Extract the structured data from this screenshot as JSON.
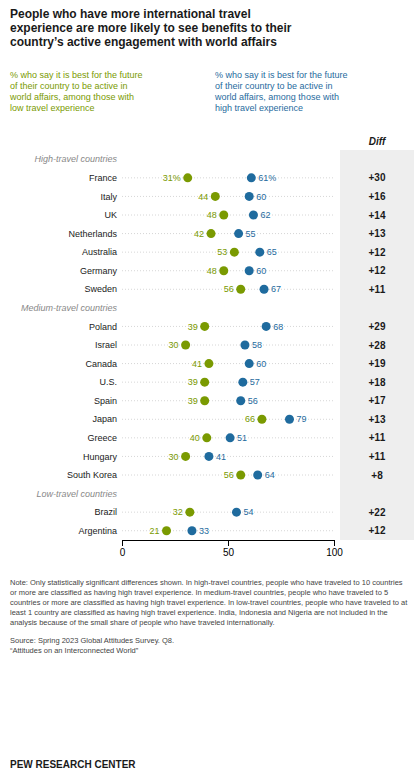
{
  "chart_data": {
    "type": "dot",
    "title": "People who have more international travel\nexperience are more likely to see benefits to their\ncountry’s active engagement with world affairs",
    "categories": [
      "High-travel countries",
      "France",
      "Italy",
      "UK",
      "Netherlands",
      "Australia",
      "Germany",
      "Sweden",
      "Medium-travel countries",
      "Poland",
      "Israel",
      "Canada",
      "U.S.",
      "Spain",
      "Japan",
      "Greece",
      "Hungary",
      "South Korea",
      "Low-travel countries",
      "Brazil",
      "Argentina"
    ],
    "series": [
      {
        "name": "% who say it is best for the future\nof their country to be active in\nworld affairs, among those with\nlow travel experience",
        "color": "#7a9a01",
        "values": [
          null,
          31,
          44,
          48,
          42,
          53,
          48,
          56,
          null,
          39,
          30,
          41,
          39,
          39,
          66,
          40,
          30,
          56,
          null,
          32,
          21
        ],
        "value_labels": [
          null,
          "31%",
          "44",
          "48",
          "42",
          "53",
          "48",
          "56",
          null,
          "39",
          "30",
          "41",
          "39",
          "39",
          "66",
          "40",
          "30",
          "56",
          null,
          "32",
          "21"
        ]
      },
      {
        "name": "% who say it is best for the future\nof their country to be active in\nworld affairs, among those with\nhigh travel experience",
        "color": "#1f6b9e",
        "values": [
          null,
          61,
          60,
          62,
          55,
          65,
          60,
          67,
          null,
          68,
          58,
          60,
          57,
          56,
          79,
          51,
          41,
          64,
          null,
          54,
          33
        ],
        "value_labels": [
          null,
          "61%",
          "60",
          "62",
          "55",
          "65",
          "60",
          "67",
          null,
          "68",
          "58",
          "60",
          "57",
          "56",
          "79",
          "51",
          "41",
          "64",
          null,
          "54",
          "33"
        ]
      }
    ],
    "diff": {
      "name": "Diff",
      "values": [
        null,
        30,
        16,
        14,
        13,
        12,
        12,
        11,
        null,
        29,
        28,
        19,
        18,
        17,
        13,
        11,
        11,
        8,
        null,
        22,
        12
      ],
      "value_labels": [
        null,
        "+30",
        "+16",
        "+14",
        "+13",
        "+12",
        "+12",
        "+11",
        null,
        "+29",
        "+28",
        "+19",
        "+18",
        "+17",
        "+13",
        "+11",
        "+11",
        "+8",
        null,
        "+22",
        "+12"
      ]
    },
    "xlim": [
      0,
      100
    ],
    "xticks": [
      0,
      50,
      100
    ],
    "grid": false,
    "data_labels": true,
    "annotations": [
      "Note: Only statistically significant differences shown. In high-travel countries, people who have traveled to 10 countries or more are classified as having high travel experience. In medium-travel countries, people who have traveled to 5 countries or more are classified as having high travel experience. In low-travel countries, people who have traveled to at least 1 country are classified as having high travel experience. India, Indonesia and Nigeria are not included in the analysis because of the small share of people who have traveled internationally.",
      "Source: Spring 2023 Global Attitudes Survey. Q8.\n“Attitudes on an Interconnected World”",
      "PEW RESEARCH CENTER"
    ]
  }
}
